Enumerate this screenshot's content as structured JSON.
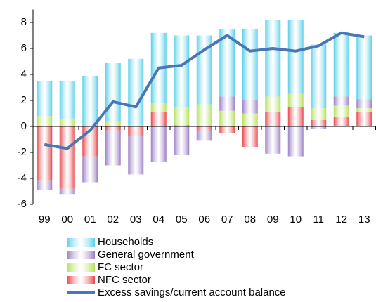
{
  "chart_data": {
    "type": "stacked-bar-line",
    "categories": [
      "99",
      "00",
      "01",
      "02",
      "03",
      "04",
      "05",
      "06",
      "07",
      "08",
      "09",
      "10",
      "11",
      "12",
      "13"
    ],
    "series": [
      {
        "name": "NFC sector",
        "color": "#e8474b",
        "values": [
          -4.2,
          -4.8,
          -2.3,
          -0.3,
          -0.7,
          1.1,
          0.1,
          -0.3,
          -0.5,
          -1.6,
          1.1,
          1.5,
          0.5,
          0.7,
          1.1
        ]
      },
      {
        "name": "FC sector",
        "color": "#b5e05a",
        "values": [
          0.8,
          0.6,
          0,
          0.4,
          0.1,
          0.7,
          1.4,
          1.7,
          1.2,
          1.0,
          1.2,
          1.0,
          0.9,
          0.9,
          0.3
        ]
      },
      {
        "name": "General government",
        "color": "#9b7fc4",
        "values": [
          -0.7,
          -0.4,
          -2.0,
          -2.7,
          -3.0,
          -2.7,
          -2.2,
          -0.8,
          1.1,
          1.0,
          -2.1,
          -2.3,
          -0.2,
          0.7,
          0.7
        ]
      },
      {
        "name": "Households",
        "color": "#5bd0ea",
        "values": [
          2.7,
          2.9,
          3.9,
          4.5,
          5.1,
          5.4,
          5.5,
          5.3,
          5.2,
          5.5,
          5.9,
          5.7,
          4.9,
          4.9,
          4.9
        ]
      }
    ],
    "line": {
      "name": "Excess savings/current account balance",
      "color": "#4a76b5",
      "values": [
        -1.4,
        -1.7,
        -0.3,
        1.9,
        1.5,
        4.5,
        4.7,
        5.9,
        7.0,
        5.8,
        6.0,
        5.8,
        6.2,
        7.2,
        6.9
      ]
    },
    "legend_order": [
      3,
      2,
      1,
      0
    ],
    "ylim": [
      -6,
      9
    ],
    "yticks": [
      -6,
      -4,
      -2,
      0,
      2,
      4,
      6,
      8
    ],
    "grid": false
  }
}
